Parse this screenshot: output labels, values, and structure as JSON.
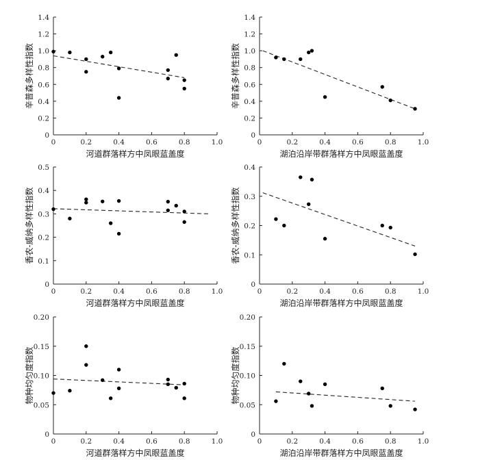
{
  "chart_data": [
    {
      "type": "scatter",
      "xlabel": "河道群落样方中凤眼蓝盖度",
      "ylabel": "辛普森多样性指数",
      "xlim": [
        0,
        1.0
      ],
      "ylim": [
        0,
        1.4
      ],
      "xticks": [
        "0",
        "0.2",
        "0.4",
        "0.6",
        "0.8",
        "1.0"
      ],
      "yticks": [
        "0",
        "0.2",
        "0.4",
        "0.6",
        "0.8",
        "1.0",
        "1.2",
        "1.4"
      ],
      "points": [
        [
          0,
          0.99
        ],
        [
          0.1,
          0.98
        ],
        [
          0.2,
          0.9
        ],
        [
          0.2,
          0.75
        ],
        [
          0.3,
          0.93
        ],
        [
          0.35,
          0.98
        ],
        [
          0.4,
          0.79
        ],
        [
          0.4,
          0.44
        ],
        [
          0.7,
          0.77
        ],
        [
          0.7,
          0.67
        ],
        [
          0.75,
          0.95
        ],
        [
          0.8,
          0.65
        ],
        [
          0.8,
          0.55
        ]
      ],
      "trend": [
        [
          0,
          0.94
        ],
        [
          0.8,
          0.68
        ]
      ]
    },
    {
      "type": "scatter",
      "xlabel": "湖泊沿岸带群落样方中凤眼蓝盖度",
      "ylabel": "辛普森多样性指数",
      "xlim": [
        0,
        1.0
      ],
      "ylim": [
        0,
        1.4
      ],
      "xticks": [
        "0",
        "0.2",
        "0.4",
        "0.6",
        "0.8",
        "1.0"
      ],
      "yticks": [
        "0",
        "0.2",
        "0.4",
        "0.6",
        "0.8",
        "1.0",
        "1.2",
        "1.4"
      ],
      "points": [
        [
          0.1,
          0.92
        ],
        [
          0.15,
          0.9
        ],
        [
          0.25,
          0.9
        ],
        [
          0.3,
          0.98
        ],
        [
          0.32,
          1.0
        ],
        [
          0.4,
          0.45
        ],
        [
          0.75,
          0.57
        ],
        [
          0.8,
          0.41
        ],
        [
          0.95,
          0.31
        ]
      ],
      "trend": [
        [
          0.02,
          1.0
        ],
        [
          0.95,
          0.31
        ]
      ]
    },
    {
      "type": "scatter",
      "xlabel": "河道群落样方中凤眼蓝盖度",
      "ylabel": "香农-威纳多样性指数",
      "xlim": [
        0,
        1.0
      ],
      "ylim": [
        0,
        0.5
      ],
      "xticks": [
        "0",
        "0.2",
        "0.4",
        "0.6",
        "0.8",
        "1.0"
      ],
      "yticks": [
        "0",
        "0.1",
        "0.2",
        "0.3",
        "0.4",
        "0.5"
      ],
      "points": [
        [
          0,
          0.32
        ],
        [
          0.1,
          0.28
        ],
        [
          0.2,
          0.362
        ],
        [
          0.2,
          0.348
        ],
        [
          0.3,
          0.353
        ],
        [
          0.35,
          0.26
        ],
        [
          0.4,
          0.355
        ],
        [
          0.4,
          0.215
        ],
        [
          0.7,
          0.352
        ],
        [
          0.7,
          0.315
        ],
        [
          0.75,
          0.335
        ],
        [
          0.8,
          0.31
        ],
        [
          0.8,
          0.265
        ]
      ],
      "trend": [
        [
          0,
          0.322
        ],
        [
          0.95,
          0.3
        ]
      ]
    },
    {
      "type": "scatter",
      "xlabel": "湖泊沿岸带群落样方中凤眼蓝盖度",
      "ylabel": "香农-威纳多样性指数",
      "xlim": [
        0,
        1.0
      ],
      "ylim": [
        0,
        0.4
      ],
      "xticks": [
        "0",
        "0.2",
        "0.4",
        "0.6",
        "0.8",
        "1.0"
      ],
      "yticks": [
        "0",
        "0.1",
        "0.2",
        "0.3",
        "0.4"
      ],
      "points": [
        [
          0.1,
          0.222
        ],
        [
          0.15,
          0.2
        ],
        [
          0.25,
          0.365
        ],
        [
          0.3,
          0.273
        ],
        [
          0.32,
          0.357
        ],
        [
          0.4,
          0.155
        ],
        [
          0.75,
          0.2
        ],
        [
          0.8,
          0.193
        ],
        [
          0.95,
          0.102
        ]
      ],
      "trend": [
        [
          0.02,
          0.312
        ],
        [
          0.95,
          0.13
        ]
      ]
    },
    {
      "type": "scatter",
      "xlabel": "河道群落样方中凤眼蓝盖度",
      "ylabel": "物种均匀度指数",
      "xlim": [
        0,
        1.0
      ],
      "ylim": [
        0,
        0.2
      ],
      "xticks": [
        "0",
        "0.2",
        "0.4",
        "0.6",
        "0.8",
        "1.0"
      ],
      "yticks": [
        "0",
        "0.05",
        "0.10",
        "0.15",
        "0.20"
      ],
      "points": [
        [
          0,
          0.07
        ],
        [
          0.1,
          0.074
        ],
        [
          0.2,
          0.15
        ],
        [
          0.2,
          0.118
        ],
        [
          0.3,
          0.092
        ],
        [
          0.35,
          0.061
        ],
        [
          0.4,
          0.11
        ],
        [
          0.4,
          0.078
        ],
        [
          0.7,
          0.093
        ],
        [
          0.7,
          0.085
        ],
        [
          0.75,
          0.079
        ],
        [
          0.8,
          0.086
        ],
        [
          0.8,
          0.061
        ]
      ],
      "trend": [
        [
          0,
          0.094
        ],
        [
          0.8,
          0.084
        ]
      ]
    },
    {
      "type": "scatter",
      "xlabel": "湖泊沿岸带群落样方中凤眼蓝盖度",
      "ylabel": "物种均匀度指数",
      "xlim": [
        0,
        1.0
      ],
      "ylim": [
        0,
        0.2
      ],
      "xticks": [
        "0",
        "0.2",
        "0.4",
        "0.6",
        "0.8",
        "1.0"
      ],
      "yticks": [
        "0",
        "0.05",
        "0.10",
        "0.15",
        "0.20"
      ],
      "points": [
        [
          0.1,
          0.056
        ],
        [
          0.15,
          0.12
        ],
        [
          0.25,
          0.09
        ],
        [
          0.3,
          0.069
        ],
        [
          0.32,
          0.048
        ],
        [
          0.4,
          0.085
        ],
        [
          0.75,
          0.078
        ],
        [
          0.8,
          0.048
        ],
        [
          0.95,
          0.042
        ]
      ],
      "trend": [
        [
          0.1,
          0.072
        ],
        [
          0.95,
          0.056
        ]
      ]
    }
  ]
}
